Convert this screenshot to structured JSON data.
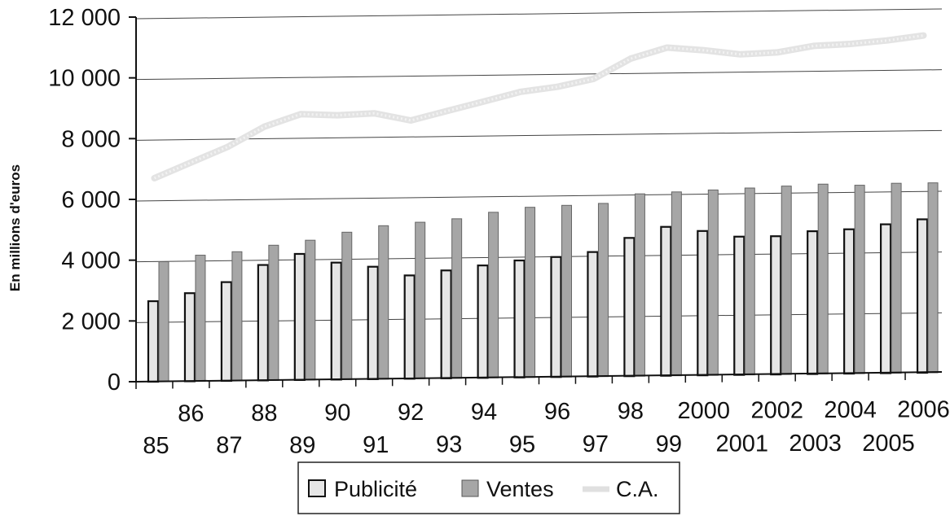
{
  "chart_data": {
    "type": "bar",
    "ylabel": "En millions d'euros",
    "ylim": [
      0,
      12000
    ],
    "yticks": [
      "0",
      "2 000",
      "4 000",
      "6 000",
      "8 000",
      "10 000",
      "12 000"
    ],
    "ytick_values": [
      0,
      2000,
      4000,
      6000,
      8000,
      10000,
      12000
    ],
    "categories": [
      "85",
      "86",
      "87",
      "88",
      "89",
      "90",
      "91",
      "92",
      "93",
      "94",
      "95",
      "96",
      "97",
      "98",
      "99",
      "2000",
      "2001",
      "2002",
      "2003",
      "2004",
      "2005",
      "2006"
    ],
    "series": [
      {
        "name": "Publicité",
        "type": "bar",
        "color": "#e6e6e6",
        "values": [
          2650,
          2900,
          3250,
          3800,
          4150,
          3850,
          3700,
          3400,
          3550,
          3700,
          3850,
          3950,
          4100,
          4550,
          4900,
          4750,
          4550,
          4550,
          4700,
          4750,
          4900,
          5050
        ]
      },
      {
        "name": "Ventes",
        "type": "bar",
        "color": "#a6a6a6",
        "values": [
          3950,
          4150,
          4250,
          4450,
          4600,
          4850,
          5050,
          5150,
          5250,
          5450,
          5600,
          5650,
          5700,
          6000,
          6050,
          6100,
          6150,
          6200,
          6250,
          6200,
          6250,
          6250
        ]
      },
      {
        "name": "C.A.",
        "type": "line",
        "color": "#e3e3e3",
        "values": [
          6700,
          7200,
          7700,
          8350,
          8750,
          8700,
          8750,
          8500,
          8800,
          9100,
          9400,
          9550,
          9800,
          10450,
          10800,
          10700,
          10550,
          10600,
          10800,
          10850,
          10950,
          11100
        ]
      }
    ],
    "grid": true,
    "legend": "bottom"
  }
}
